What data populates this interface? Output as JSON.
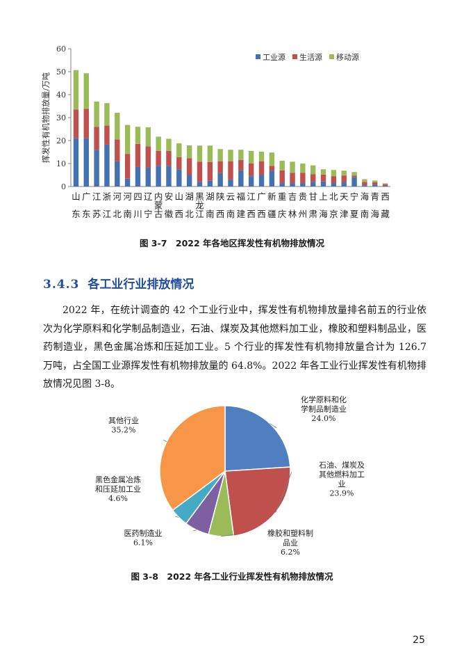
{
  "figure_3_7": {
    "caption": "图 3-7　2022 年各地区挥发性有机物排放情况",
    "chart_data": {
      "type": "bar",
      "stacked": true,
      "title": "",
      "xlabel": "",
      "ylabel": "挥发性有机物排放量/万吨",
      "ylim": [
        0,
        60
      ],
      "yticks": [
        0,
        10,
        20,
        30,
        40,
        50,
        60
      ],
      "legend_position": "top-right",
      "categories": [
        "山东",
        "广东",
        "江苏",
        "浙江",
        "河北",
        "河南",
        "四川",
        "辽宁",
        "内蒙古",
        "安徽",
        "山西",
        "湖北",
        "黑龙江",
        "湖南",
        "陕西",
        "云南",
        "福建",
        "江西",
        "广西",
        "新疆",
        "重庆",
        "吉林",
        "贵州",
        "甘肃",
        "上海",
        "北京",
        "天津",
        "宁夏",
        "海南",
        "青海",
        "西藏"
      ],
      "series": [
        {
          "name": "工业源",
          "color": "#4472b0",
          "values": [
            21,
            21,
            16,
            18.2,
            11,
            3.4,
            8.5,
            8.2,
            9,
            9,
            7.5,
            5,
            2,
            2.5,
            5.8,
            3,
            7,
            4.5,
            5,
            6.8,
            1.5,
            1.5,
            1.5,
            2,
            2.2,
            1.5,
            1.8,
            4,
            0.5,
            0.8,
            0.3
          ]
        },
        {
          "name": "生活源",
          "color": "#c0504d",
          "values": [
            12.5,
            12.8,
            10,
            8.3,
            9.5,
            10.8,
            10,
            9.3,
            6.5,
            6.5,
            5.3,
            7.3,
            8.8,
            8.2,
            5.2,
            8,
            4.5,
            5.5,
            6,
            2.2,
            5.5,
            4.5,
            4.5,
            3.4,
            3,
            3,
            3,
            0.8,
            1.5,
            1,
            0.7
          ]
        },
        {
          "name": "移动源",
          "color": "#9bbb59",
          "values": [
            17.2,
            15.5,
            11,
            9.8,
            11.6,
            12.6,
            7.5,
            8.3,
            6.2,
            5.3,
            6,
            5.6,
            7,
            7.1,
            5.3,
            5,
            4.5,
            5.5,
            4.2,
            5.8,
            4.2,
            4.8,
            4,
            3.8,
            2.3,
            2.7,
            2.1,
            1.5,
            1.2,
            0.8,
            0.4
          ]
        }
      ]
    }
  },
  "section": {
    "number": "3.4.3",
    "title": "各工业行业排放情况"
  },
  "paragraph": "2022 年，在统计调查的 42 个工业行业中，挥发性有机物排放量排名前五的行业依次为化学原料和化学制品制造业，石油、煤炭及其他燃料加工业，橡胶和塑料制品业，医药制造业，黑色金属冶炼和压延加工业。5 个行业的挥发性有机物排放量合计为 126.7 万吨，占全国工业源挥发性有机物排放量的 64.8%。2022 年各工业行业挥发性有机物排放情况见图 3-8。",
  "figure_3_8": {
    "caption": "图 3-8　2022 年各工业行业挥发性有机物排放情况",
    "chart_data": {
      "type": "pie",
      "title": "",
      "slices": [
        {
          "label_lines": [
            "化学原料和化",
            "学制品制造业"
          ],
          "value": 24.0,
          "percent": "24.0%",
          "color": "#4f7fc0"
        },
        {
          "label_lines": [
            "石油、煤炭及",
            "其他燃料加工",
            "业"
          ],
          "value": 23.9,
          "percent": "23.9%",
          "color": "#c0504d"
        },
        {
          "label_lines": [
            "橡胶和塑料制",
            "品业"
          ],
          "value": 6.2,
          "percent": "6.2%",
          "color": "#9bbb59"
        },
        {
          "label_lines": [
            "医药制造业"
          ],
          "value": 6.1,
          "percent": "6.1%",
          "color": "#7d60a0"
        },
        {
          "label_lines": [
            "黑色金属冶炼",
            "和压延加工业"
          ],
          "value": 4.6,
          "percent": "4.6%",
          "color": "#46aac5"
        },
        {
          "label_lines": [
            "其他行业"
          ],
          "value": 35.2,
          "percent": "35.2%",
          "color": "#f79646"
        }
      ]
    }
  },
  "page_number": "25"
}
